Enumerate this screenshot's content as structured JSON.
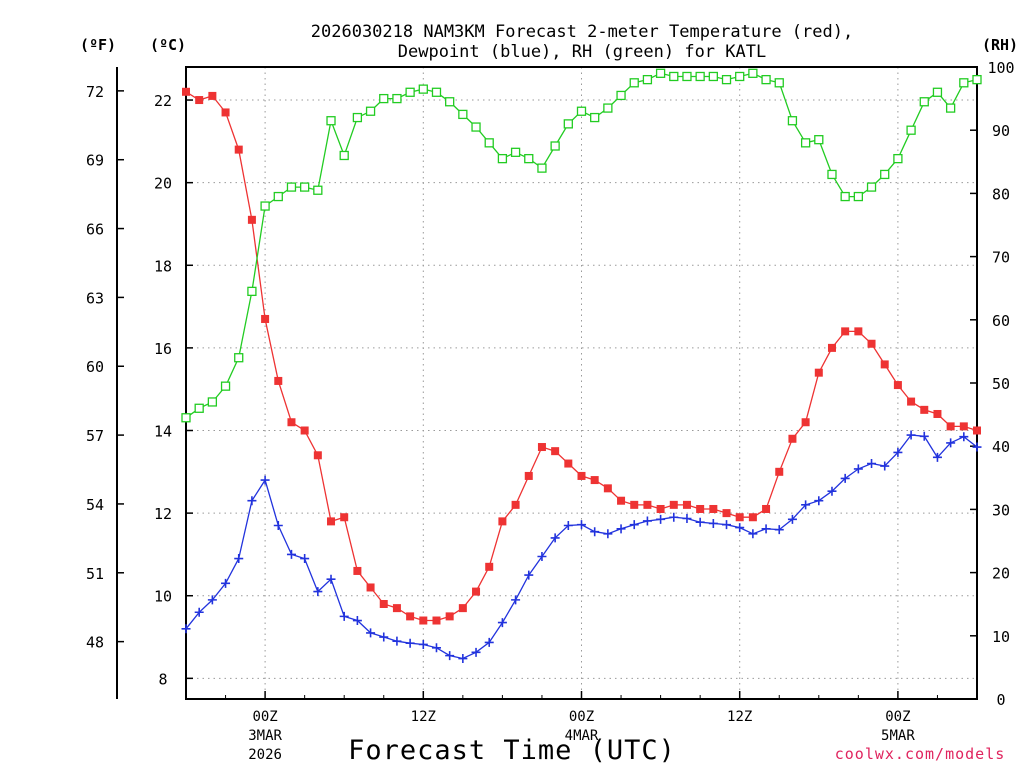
{
  "chart_data": {
    "type": "line",
    "title_line1": "2026030218 NAM3KM Forecast 2-meter Temperature (red),",
    "title_line2": "Dewpoint (blue), RH (green) for KATL",
    "left_outer_unit": "(ºF)",
    "left_inner_unit": "(ºC)",
    "right_unit": "(RH)",
    "xlabel": "Forecast Time (UTC)",
    "credit": "coolwx.com/models",
    "x_range": [
      -6,
      54
    ],
    "celsius_range": [
      7.5,
      22.8
    ],
    "rh_range": [
      0,
      100
    ],
    "celsius_ticks": [
      "8",
      "10",
      "12",
      "14",
      "16",
      "18",
      "20",
      "22"
    ],
    "fahrenheit_ticks": [
      "48",
      "51",
      "54",
      "57",
      "60",
      "63",
      "66",
      "69",
      "72"
    ],
    "rh_ticks": [
      "0",
      "10",
      "20",
      "30",
      "40",
      "50",
      "60",
      "70",
      "80",
      "90",
      "100"
    ],
    "x_ticks": [
      {
        "hour": 0,
        "label": "00Z",
        "sub1": "3MAR",
        "sub2": "2026"
      },
      {
        "hour": 12,
        "label": "12Z",
        "sub1": "",
        "sub2": ""
      },
      {
        "hour": 24,
        "label": "00Z",
        "sub1": "4MAR",
        "sub2": ""
      },
      {
        "hour": 36,
        "label": "12Z",
        "sub1": "",
        "sub2": ""
      },
      {
        "hour": 48,
        "label": "00Z",
        "sub1": "5MAR",
        "sub2": ""
      }
    ],
    "series": [
      {
        "name": "Temperature",
        "axis": "celsius",
        "color": "#ee3333",
        "marker": "filled-square",
        "x": [
          -6,
          -5,
          -4,
          -3,
          -2,
          -1,
          0,
          1,
          2,
          3,
          4,
          5,
          6,
          7,
          8,
          9,
          10,
          11,
          12,
          13,
          14,
          15,
          16,
          17,
          18,
          19,
          20,
          21,
          22,
          23,
          24,
          25,
          26,
          27,
          28,
          29,
          30,
          31,
          32,
          33,
          34,
          35,
          36,
          37,
          38,
          39,
          40,
          41,
          42,
          43,
          44,
          45,
          46,
          47,
          48,
          49,
          50,
          51,
          52,
          53,
          54
        ],
        "values": [
          22.2,
          22.0,
          22.1,
          21.7,
          20.8,
          19.1,
          16.7,
          15.2,
          14.2,
          14.0,
          13.4,
          11.8,
          11.9,
          10.6,
          10.2,
          9.8,
          9.7,
          9.5,
          9.4,
          9.4,
          9.5,
          9.7,
          10.1,
          10.7,
          11.8,
          12.2,
          12.9,
          13.6,
          13.5,
          13.2,
          12.9,
          12.8,
          12.6,
          12.3,
          12.2,
          12.2,
          12.1,
          12.2,
          12.2,
          12.1,
          12.1,
          12.0,
          11.9,
          11.9,
          12.1,
          13.0,
          13.8,
          14.2,
          15.4,
          16.0,
          16.4,
          16.4,
          16.1,
          15.6,
          15.1,
          14.7,
          14.5,
          14.4,
          14.1,
          14.1,
          14.0
        ]
      },
      {
        "name": "Dewpoint",
        "axis": "celsius",
        "color": "#2233dd",
        "marker": "plus",
        "x": [
          -6,
          -5,
          -4,
          -3,
          -2,
          -1,
          0,
          1,
          2,
          3,
          4,
          5,
          6,
          7,
          8,
          9,
          10,
          11,
          12,
          13,
          14,
          15,
          16,
          17,
          18,
          19,
          20,
          21,
          22,
          23,
          24,
          25,
          26,
          27,
          28,
          29,
          30,
          31,
          32,
          33,
          34,
          35,
          36,
          37,
          38,
          39,
          40,
          41,
          42,
          43,
          44,
          45,
          46,
          47,
          48,
          49,
          50,
          51,
          52,
          53,
          54
        ],
        "values": [
          9.2,
          9.6,
          9.9,
          10.3,
          10.9,
          12.3,
          12.8,
          11.7,
          11.0,
          10.9,
          10.1,
          10.4,
          9.5,
          9.4,
          9.1,
          9.0,
          8.9,
          8.85,
          8.82,
          8.74,
          8.55,
          8.48,
          8.63,
          8.87,
          9.35,
          9.9,
          10.5,
          10.95,
          11.4,
          11.7,
          11.72,
          11.55,
          11.5,
          11.62,
          11.72,
          11.81,
          11.85,
          11.9,
          11.87,
          11.78,
          11.75,
          11.72,
          11.65,
          11.5,
          11.62,
          11.6,
          11.85,
          12.2,
          12.3,
          12.53,
          12.84,
          13.07,
          13.2,
          13.14,
          13.47,
          13.89,
          13.86,
          13.35,
          13.7,
          13.85,
          13.6
        ]
      },
      {
        "name": "RH",
        "axis": "rh",
        "color": "#22cc22",
        "marker": "open-square",
        "x": [
          -6,
          -5,
          -4,
          -3,
          -2,
          -1,
          0,
          1,
          2,
          3,
          4,
          5,
          6,
          7,
          8,
          9,
          10,
          11,
          12,
          13,
          14,
          15,
          16,
          17,
          18,
          19,
          20,
          21,
          22,
          23,
          24,
          25,
          26,
          27,
          28,
          29,
          30,
          31,
          32,
          33,
          34,
          35,
          36,
          37,
          38,
          39,
          40,
          41,
          42,
          43,
          44,
          45,
          46,
          47,
          48,
          49,
          50,
          51,
          52,
          53,
          54
        ],
        "values": [
          44.5,
          46,
          47,
          49.5,
          54,
          64.5,
          78,
          79.5,
          81,
          81,
          80.5,
          91.5,
          86,
          92,
          93,
          95,
          95,
          96,
          96.5,
          96,
          94.5,
          92.5,
          90.5,
          88,
          85.5,
          86.5,
          85.5,
          84,
          87.5,
          91,
          93,
          92,
          93.5,
          95.5,
          97.5,
          98,
          99,
          98.5,
          98.5,
          98.5,
          98.5,
          98,
          98.5,
          99,
          98,
          97.5,
          91.5,
          88,
          88.5,
          83,
          79.5,
          79.5,
          81,
          83,
          85.5,
          90,
          94.5,
          96,
          93.5,
          97.5,
          98
        ]
      }
    ]
  }
}
